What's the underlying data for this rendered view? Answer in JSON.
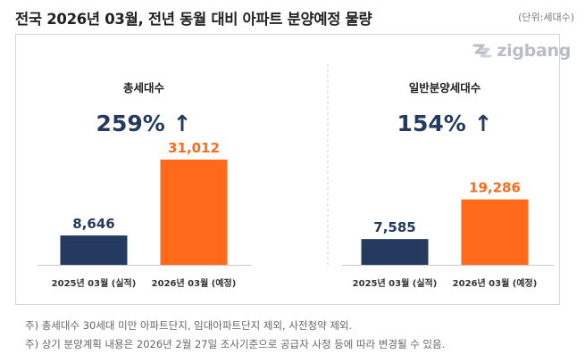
{
  "title": "전국 2026년 03월, 전년 동월 대비 아파트 분양예정 물량",
  "unit": "(단위:세대수)",
  "logo_text": "zigbang",
  "notes": [
    "주) 총세대수 30세대 미만 아파트단지, 임대아파트단지 제외, 사전청약 제외.",
    "주) 상기 분양계획 내용은 2026년 2월 27일 조사기준으로 공급자 사정 등에 따라 변경될 수 있음."
  ],
  "colors": {
    "prev": "#243a5e",
    "curr": "#ff6a1a",
    "text_dark": "#243a5e"
  },
  "chart_data": [
    {
      "type": "bar",
      "title": "총세대수",
      "change": "259% ↑",
      "categories": [
        "2025년 03월 (실적)",
        "2026년 03월 (예정)"
      ],
      "values": [
        8646,
        31012
      ],
      "value_labels": [
        "8,646",
        "31,012"
      ],
      "ylim": [
        0,
        31012
      ]
    },
    {
      "type": "bar",
      "title": "일반분양세대수",
      "change": "154% ↑",
      "categories": [
        "2025년 03월 (실적)",
        "2026년 03월 (예정)"
      ],
      "values": [
        7585,
        19286
      ],
      "value_labels": [
        "7,585",
        "19,286"
      ],
      "ylim": [
        0,
        31012
      ]
    }
  ]
}
